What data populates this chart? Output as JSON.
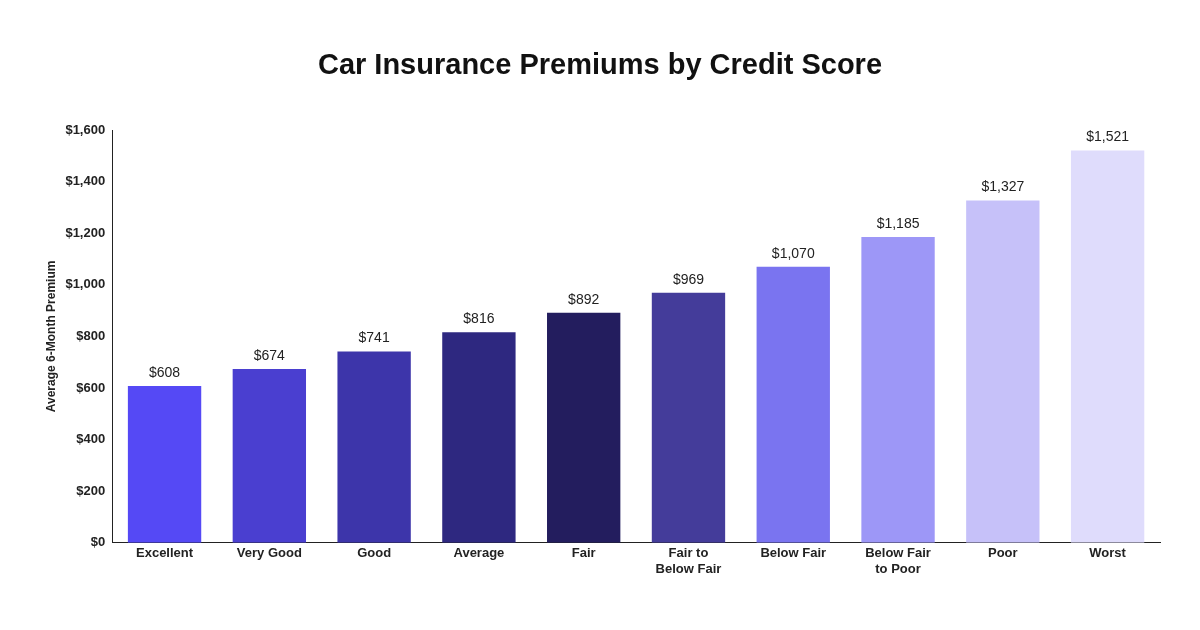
{
  "chart_data": {
    "type": "bar",
    "title": "Car Insurance Premiums by Credit Score",
    "ylabel": "Average 6-Month Premium",
    "categories": [
      "Excellent",
      "Very Good",
      "Good",
      "Average",
      "Fair",
      "Fair to Below Fair",
      "Below Fair",
      "Below Fair to Poor",
      "Poor",
      "Worst"
    ],
    "values": [
      608,
      674,
      741,
      816,
      892,
      969,
      1070,
      1185,
      1327,
      1521
    ],
    "colors": [
      "#5549f5",
      "#4a3fd0",
      "#3d35aa",
      "#2e2880",
      "#231d5e",
      "#443c9a",
      "#7a74f0",
      "#9d97f7",
      "#c6c1f9",
      "#dfdcfc"
    ],
    "value_labels": [
      "$608",
      "$674",
      "$741",
      "$816",
      "$892",
      "$969",
      "$1,070",
      "$1,185",
      "$1,327",
      "$1,521"
    ],
    "ylim": [
      0,
      1600
    ],
    "yticks": [
      {
        "value": 0,
        "label": "$0"
      },
      {
        "value": 200,
        "label": "$200"
      },
      {
        "value": 400,
        "label": "$400"
      },
      {
        "value": 600,
        "label": "$600"
      },
      {
        "value": 800,
        "label": "$800"
      },
      {
        "value": 1000,
        "label": "$1,000"
      },
      {
        "value": 1200,
        "label": "$1,200"
      },
      {
        "value": 1400,
        "label": "$1,400"
      },
      {
        "value": 1600,
        "label": "$1,600"
      }
    ],
    "grid": false,
    "legend": false
  }
}
